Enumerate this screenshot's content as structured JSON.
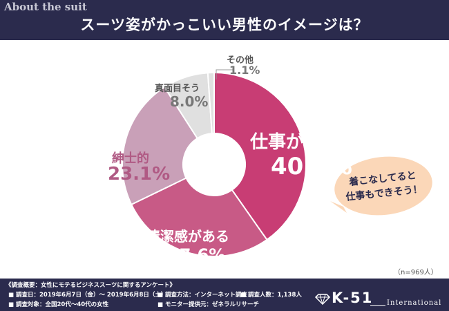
{
  "header": {
    "section_label": "About the suit",
    "title": "スーツ姿がかっこいい男性のイメージは？"
  },
  "colors": {
    "navy": "#2b2b4d",
    "primary": "#c83d74",
    "secondary": "#c85a86",
    "tertiary": "#c9a0b8",
    "light": "#e0e0e0",
    "bubble": "#fbd7b8"
  },
  "chart_data": {
    "type": "pie",
    "variant": "donut",
    "categories": [
      "仕事ができる",
      "清潔感がある",
      "紳士的",
      "真面目そう",
      "その他"
    ],
    "values": [
      40.3,
      27.6,
      23.1,
      8.0,
      1.1
    ],
    "value_labels": [
      "40.3%",
      "27.6%",
      "23.1%",
      "8.0%",
      "1.1%"
    ],
    "colors": [
      "#c83d74",
      "#c85a86",
      "#c9a0b8",
      "#e0e0e0",
      "#e0e0e0"
    ],
    "sample_note": "（n=969人）",
    "callout": {
      "line1": "着こなしてると",
      "line2": "仕事もできそう！"
    }
  },
  "footer": {
    "survey_title": "《調査概要：女性にモテるビジネススーツに関するアンケート》",
    "date": "■ 調査日：2019年6月7日（金）〜 2019年6月8日（土）",
    "method": "■ 調査方法：インターネット調査",
    "count": "■ 調査人数：1,138人",
    "target": "■ 調査対象：全国20代〜40代の女性",
    "provider": "■ モニター提供元：ゼネラルリサーチ",
    "logo_main": "K-51",
    "logo_sub": "International"
  }
}
